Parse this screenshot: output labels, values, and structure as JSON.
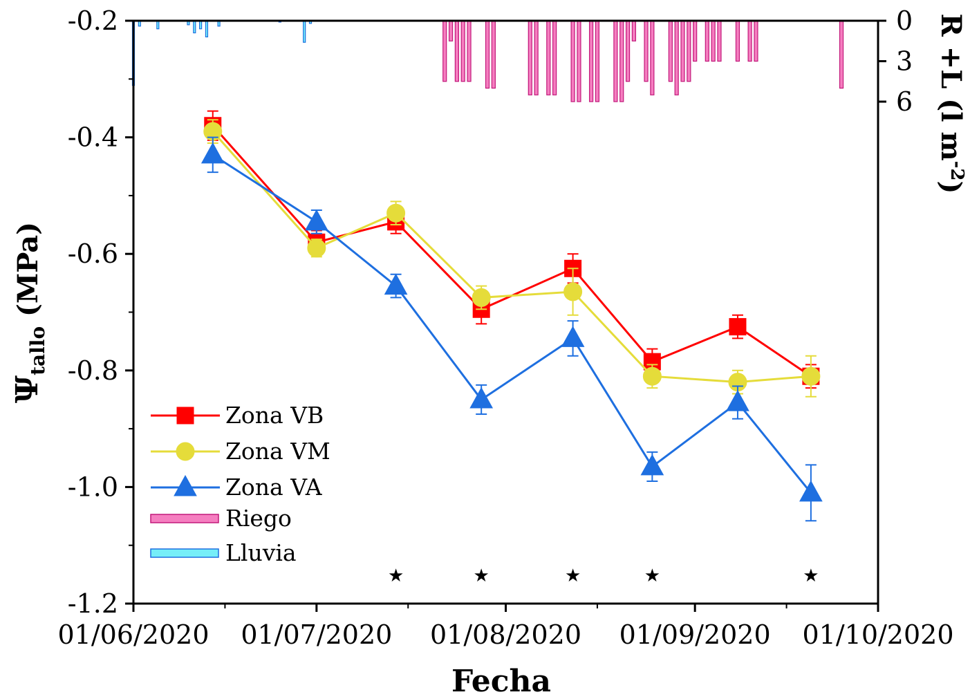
{
  "chart_data": {
    "type": "line",
    "xlabel": "Fecha",
    "ylabel": "Ψ",
    "ylabel_sub": "tallo",
    "ylabel_unit": " (MPa)",
    "y2label": "R +L (l m",
    "y2label_sup": "-2",
    "y2label_end": ")",
    "xlim": [
      "2020-06-01",
      "2020-10-01"
    ],
    "ylim": [
      -1.2,
      -0.2
    ],
    "y2lim": [
      0,
      6
    ],
    "x_tick_labels": [
      "01/06/2020",
      "01/07/2020",
      "01/08/2020",
      "01/09/2020",
      "01/10/2020"
    ],
    "y_tick_labels": [
      "-0.2",
      "-0.4",
      "-0.6",
      "-0.8",
      "-1.0",
      "-1.2"
    ],
    "y2_tick_labels": [
      "0",
      "3",
      "6"
    ],
    "legend_position": "bottom-left",
    "colors": {
      "VB": "#ff0000",
      "VM": "#e5dc3a",
      "VA": "#1e6fe0",
      "riego": "#f57ec0",
      "lluvia": "#76eef8"
    },
    "series": [
      {
        "name": "Zona VB",
        "marker": "square",
        "x": [
          "2020-06-14",
          "2020-07-01",
          "2020-07-14",
          "2020-07-28",
          "2020-08-12",
          "2020-08-25",
          "2020-09-08",
          "2020-09-20"
        ],
        "y": [
          -0.38,
          -0.58,
          -0.545,
          -0.695,
          -0.625,
          -0.785,
          -0.725,
          -0.81
        ],
        "err": [
          0.025,
          0.02,
          0.02,
          0.025,
          0.025,
          0.022,
          0.02,
          0.02
        ]
      },
      {
        "name": "Zona VM",
        "marker": "circle",
        "x": [
          "2020-06-14",
          "2020-07-01",
          "2020-07-14",
          "2020-07-28",
          "2020-08-12",
          "2020-08-25",
          "2020-09-08",
          "2020-09-20"
        ],
        "y": [
          -0.39,
          -0.59,
          -0.53,
          -0.675,
          -0.665,
          -0.81,
          -0.82,
          -0.81
        ],
        "err": [
          0.02,
          0.015,
          0.02,
          0.02,
          0.04,
          0.02,
          0.02,
          0.035
        ]
      },
      {
        "name": "Zona VA",
        "marker": "triangle",
        "x": [
          "2020-06-14",
          "2020-07-01",
          "2020-07-14",
          "2020-07-28",
          "2020-08-12",
          "2020-08-25",
          "2020-09-08",
          "2020-09-20"
        ],
        "y": [
          -0.43,
          -0.545,
          -0.655,
          -0.85,
          -0.745,
          -0.965,
          -0.855,
          -1.01
        ],
        "err": [
          0.03,
          0.02,
          0.02,
          0.025,
          0.03,
          0.025,
          0.028,
          0.048
        ]
      }
    ],
    "bars": [
      {
        "name": "Riego",
        "x": [
          "2020-07-22",
          "2020-07-23",
          "2020-07-24",
          "2020-07-25",
          "2020-07-26",
          "2020-07-29",
          "2020-07-30",
          "2020-08-05",
          "2020-08-06",
          "2020-08-08",
          "2020-08-09",
          "2020-08-12",
          "2020-08-13",
          "2020-08-15",
          "2020-08-16",
          "2020-08-19",
          "2020-08-20",
          "2020-08-21",
          "2020-08-22",
          "2020-08-24",
          "2020-08-25",
          "2020-08-28",
          "2020-08-29",
          "2020-08-30",
          "2020-08-31",
          "2020-09-01",
          "2020-09-03",
          "2020-09-04",
          "2020-09-05",
          "2020-09-08",
          "2020-09-10",
          "2020-09-11",
          "2020-09-25"
        ],
        "values": [
          4.5,
          1.5,
          4.5,
          4.5,
          4.5,
          5.0,
          5.0,
          5.5,
          5.5,
          5.5,
          5.5,
          6.0,
          6.0,
          6.0,
          6.0,
          6.0,
          6.0,
          4.5,
          1.5,
          4.5,
          5.5,
          4.5,
          5.5,
          4.5,
          4.5,
          3.0,
          3.0,
          3.0,
          3.0,
          3.0,
          3.0,
          3.0,
          5.0
        ]
      },
      {
        "name": "Lluvia",
        "x": [
          "2020-06-01",
          "2020-06-02",
          "2020-06-05",
          "2020-06-10",
          "2020-06-11",
          "2020-06-12",
          "2020-06-13",
          "2020-06-15",
          "2020-06-25",
          "2020-06-29",
          "2020-06-30"
        ],
        "values": [
          4.8,
          0.4,
          0.6,
          0.3,
          0.9,
          0.6,
          1.2,
          0.4,
          0.1,
          1.6,
          0.2
        ]
      }
    ],
    "annotations": [
      {
        "symbol": "★",
        "x": "2020-07-14"
      },
      {
        "symbol": "★",
        "x": "2020-07-28"
      },
      {
        "symbol": "★",
        "x": "2020-08-12"
      },
      {
        "symbol": "★",
        "x": "2020-08-25"
      },
      {
        "symbol": "★",
        "x": "2020-09-20"
      }
    ],
    "legend": [
      {
        "label": "Zona VB",
        "kind": "line",
        "marker": "square"
      },
      {
        "label": "Zona VM",
        "kind": "line",
        "marker": "circle"
      },
      {
        "label": "Zona VA",
        "kind": "line",
        "marker": "triangle"
      },
      {
        "label": "Riego",
        "kind": "bar"
      },
      {
        "label": "Lluvia",
        "kind": "bar"
      }
    ]
  }
}
